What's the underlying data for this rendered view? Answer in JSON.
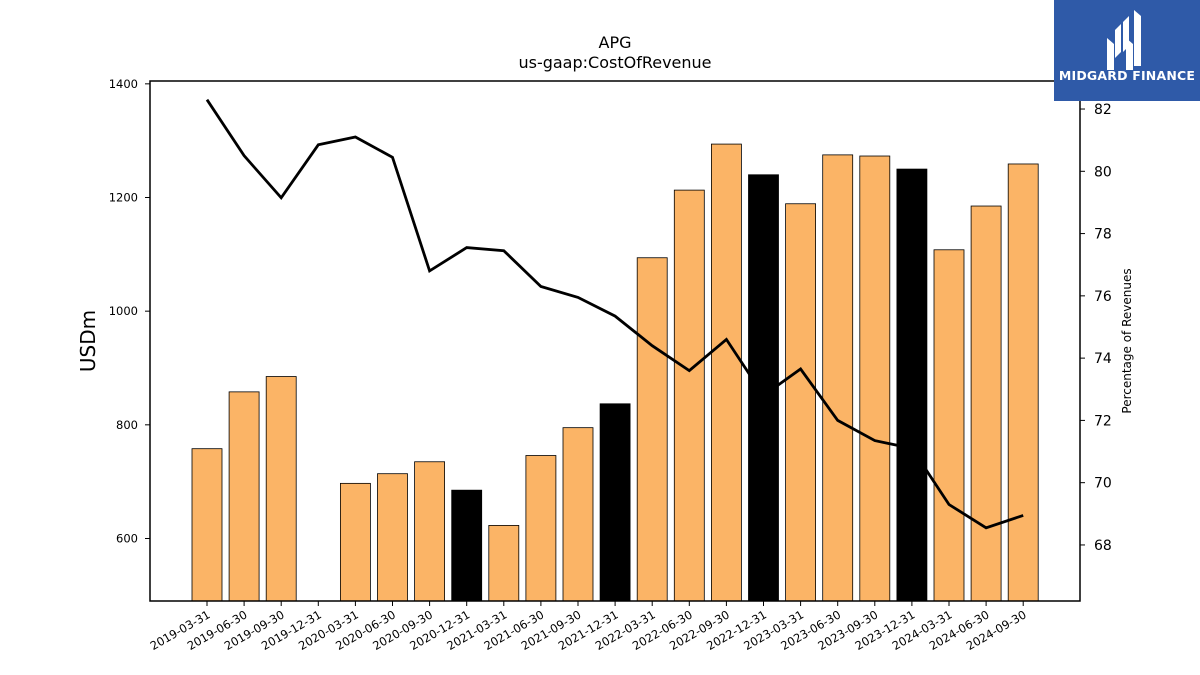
{
  "brand": {
    "name": "MIDGARD FINANCE",
    "background": "#2f5aa8",
    "icon": "midgard-logo-icon"
  },
  "chart_data": {
    "type": "bar",
    "title": "APG",
    "subtitle": "us-gaap:CostOfRevenue",
    "ylabel": "USDm",
    "y2label": "Percentage of Revenues",
    "categories": [
      "2019-03-31",
      "2019-06-30",
      "2019-09-30",
      "2019-12-31",
      "2020-03-31",
      "2020-06-30",
      "2020-09-30",
      "2020-12-31",
      "2021-03-31",
      "2021-06-30",
      "2021-09-30",
      "2021-12-31",
      "2022-03-31",
      "2022-06-30",
      "2022-09-30",
      "2022-12-31",
      "2023-03-31",
      "2023-06-30",
      "2023-09-30",
      "2023-12-31",
      "2024-03-31",
      "2024-06-30",
      "2024-09-30"
    ],
    "series": [
      {
        "kind": "bar",
        "axis": "left",
        "values": [
          758,
          858,
          885,
          null,
          697,
          714,
          735,
          685,
          623,
          746,
          795,
          837,
          1094,
          1213,
          1294,
          1240,
          1189,
          1275,
          1273,
          1250,
          1108,
          1185,
          1259
        ],
        "highlight": [
          false,
          false,
          false,
          false,
          false,
          false,
          false,
          true,
          false,
          false,
          false,
          true,
          false,
          false,
          false,
          true,
          false,
          false,
          false,
          true,
          false,
          false,
          false
        ]
      },
      {
        "kind": "line",
        "axis": "right",
        "values": [
          82.3,
          80.5,
          79.15,
          80.85,
          81.1,
          80.45,
          76.8,
          77.55,
          77.45,
          76.3,
          75.95,
          75.35,
          74.4,
          73.6,
          74.6,
          72.8,
          73.65,
          72.0,
          71.35,
          71.1,
          69.3,
          68.55,
          68.95
        ]
      }
    ],
    "ylim": [
      490,
      1405
    ],
    "yticks": [
      600,
      800,
      1000,
      1200,
      1400
    ],
    "y2lim": [
      66.2,
      82.9
    ],
    "y2ticks": [
      68,
      70,
      72,
      74,
      76,
      78,
      80,
      82
    ],
    "colors": {
      "bar": "#fbb466",
      "bar_highlight": "#000000",
      "line": "#000000"
    },
    "grid": false,
    "legend": "none"
  }
}
